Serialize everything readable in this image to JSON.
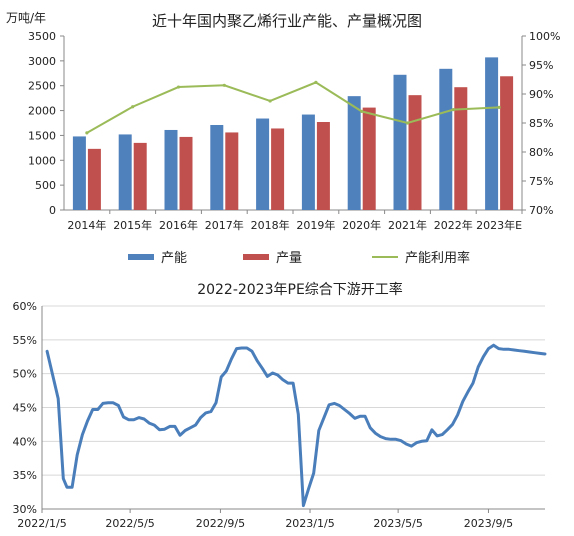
{
  "chart_data": [
    {
      "type": "bar",
      "title": "近十年国内聚乙烯行业产能、产量概况图",
      "y_unit": "万吨/年",
      "categories": [
        "2014年",
        "2015年",
        "2016年",
        "2017年",
        "2018年",
        "2019年",
        "2020年",
        "2021年",
        "2022年",
        "2023年E"
      ],
      "ylim": [
        0,
        3500
      ],
      "yticks": [
        "0",
        "500",
        "1000",
        "1500",
        "2000",
        "2500",
        "3000",
        "3500"
      ],
      "y2lim": [
        70,
        100
      ],
      "y2ticks": [
        "70%",
        "75%",
        "80%",
        "85%",
        "90%",
        "95%",
        "100%"
      ],
      "series": [
        {
          "name": "产能",
          "type": "bar",
          "axis": "left",
          "color": "#4F81BD",
          "values": [
            1480,
            1520,
            1610,
            1710,
            1840,
            1920,
            2290,
            2720,
            2840,
            3070
          ]
        },
        {
          "name": "产量",
          "type": "bar",
          "axis": "left",
          "color": "#C0504D",
          "values": [
            1230,
            1350,
            1470,
            1560,
            1640,
            1770,
            2060,
            2310,
            2470,
            2690
          ]
        },
        {
          "name": "产能利用率",
          "type": "line",
          "axis": "right",
          "color": "#9BBB59",
          "values": [
            83.3,
            87.8,
            91.2,
            91.5,
            88.8,
            92.0,
            87.0,
            85.0,
            87.3,
            87.7
          ]
        }
      ],
      "legend_position": "bottom",
      "grid": false
    },
    {
      "type": "line",
      "title": "2022-2023年PE综合下游开工率",
      "ylim": [
        30,
        60
      ],
      "yticks": [
        "30%",
        "35%",
        "40%",
        "45%",
        "50%",
        "55%",
        "60%"
      ],
      "xlim": [
        "2022-01-05",
        "2023-11-21"
      ],
      "xticks": [
        "2022/1/5",
        "2022/5/5",
        "2022/9/5",
        "2023/1/5",
        "2023/5/5",
        "2023/9/5"
      ],
      "grid": true,
      "series": [
        {
          "color": "#4A7EBB",
          "x": [
            "2022-01-12",
            "2022-01-27",
            "2022-02-03",
            "2022-02-08",
            "2022-02-15",
            "2022-02-22",
            "2022-03-01",
            "2022-03-08",
            "2022-03-15",
            "2022-03-22",
            "2022-03-29",
            "2022-04-05",
            "2022-04-12",
            "2022-04-19",
            "2022-04-26",
            "2022-05-03",
            "2022-05-10",
            "2022-05-17",
            "2022-05-24",
            "2022-05-31",
            "2022-06-07",
            "2022-06-14",
            "2022-06-21",
            "2022-06-28",
            "2022-07-05",
            "2022-07-12",
            "2022-07-19",
            "2022-07-26",
            "2022-08-02",
            "2022-08-09",
            "2022-08-16",
            "2022-08-23",
            "2022-08-30",
            "2022-09-06",
            "2022-09-13",
            "2022-09-20",
            "2022-09-27",
            "2022-10-04",
            "2022-10-11",
            "2022-10-18",
            "2022-10-25",
            "2022-11-01",
            "2022-11-08",
            "2022-11-15",
            "2022-11-22",
            "2022-11-29",
            "2022-12-06",
            "2022-12-13",
            "2022-12-20",
            "2022-12-27",
            "2023-01-03",
            "2023-01-10",
            "2023-01-17",
            "2023-01-24",
            "2023-01-31",
            "2023-02-07",
            "2023-02-14",
            "2023-02-21",
            "2023-02-28",
            "2023-03-07",
            "2023-03-14",
            "2023-03-21",
            "2023-03-28",
            "2023-04-04",
            "2023-04-11",
            "2023-04-18",
            "2023-04-25",
            "2023-05-02",
            "2023-05-09",
            "2023-05-16",
            "2023-05-23",
            "2023-05-30",
            "2023-06-06",
            "2023-06-13",
            "2023-06-20",
            "2023-06-27",
            "2023-07-04",
            "2023-07-11",
            "2023-07-18",
            "2023-07-25",
            "2023-08-01",
            "2023-08-08",
            "2023-08-15",
            "2023-08-22",
            "2023-08-29",
            "2023-09-05",
            "2023-09-12",
            "2023-09-19",
            "2023-09-26",
            "2023-10-03",
            "2023-10-10",
            "2023-10-17",
            "2023-10-24",
            "2023-10-31",
            "2023-11-07",
            "2023-11-14",
            "2023-11-21"
          ],
          "y": [
            53.3,
            46.3,
            34.5,
            33.2,
            33.2,
            38.0,
            41.0,
            43.0,
            44.7,
            44.7,
            45.6,
            45.7,
            45.7,
            45.3,
            43.6,
            43.2,
            43.2,
            43.5,
            43.3,
            42.7,
            42.4,
            41.7,
            41.8,
            42.2,
            42.2,
            40.9,
            41.6,
            42.0,
            42.4,
            43.5,
            44.2,
            44.4,
            45.7,
            49.5,
            50.4,
            52.2,
            53.7,
            53.8,
            53.8,
            53.3,
            51.9,
            50.8,
            49.6,
            50.1,
            49.8,
            49.1,
            48.6,
            48.6,
            44.0,
            30.5,
            33.0,
            35.3,
            41.6,
            43.5,
            45.4,
            45.6,
            45.3,
            44.7,
            44.1,
            43.4,
            43.7,
            43.7,
            42.0,
            41.2,
            40.7,
            40.4,
            40.3,
            40.3,
            40.1,
            39.6,
            39.3,
            39.8,
            40.0,
            40.1,
            41.7,
            40.8,
            41.0,
            41.7,
            42.5,
            43.9,
            45.9,
            47.3,
            48.6,
            51.0,
            52.5,
            53.7,
            54.2,
            53.7,
            53.6,
            53.6,
            53.5,
            53.4,
            53.3,
            53.2,
            53.1,
            53.0,
            52.9
          ]
        }
      ]
    }
  ]
}
